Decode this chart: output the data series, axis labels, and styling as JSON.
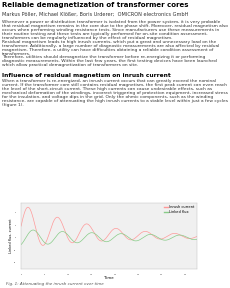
{
  "title": "Reliable demagnetization of transformer cores",
  "authors": "Markus Pöller, Michael Klößer, Boris Urderer;  OMICRON electronics GmbH",
  "abstract_lines": [
    "Whenever a power or distribution transformer is isolated from the power system, it is very probable",
    "that residual magnetism remains in the core due to the phase shift. Moreover, residual magnetism also",
    "occurs when performing winding resistance tests. Since manufacturers use these measurements in",
    "their routine testing and these tests are typically performed for on-site condition assessment,",
    "transformers can be regularly influenced by the effect of residual magnetism.",
    "Residual magnetism leads to high inrush currents, which put a great and unnecessary load on the",
    "transformer. Additionally, a large number of diagnostic measurements are also affected by residual",
    "magnetism. Therefore, a utility can have difficulties obtaining a reliable condition assessment of",
    "transformers.",
    "Therefore, utilities should demagnetize the transformer before re-energizing it or performing",
    "diagnostic measurements. Within the last few years, the first testing devices have been launched",
    "which allow practical demagnetization of transformers on site."
  ],
  "section_title": "Influence of residual magnetism on inrush current",
  "section_lines": [
    "When a transformer is re-energized, an inrush current occurs that can greatly exceed the nominal",
    "current. If the transformer core still contains residual magnetism, the first peak current can even reach",
    "the level of the short-circuit current. These high currents can cause undesirable effects, such as",
    "mechanical deformation of the windings, incorrect triggering of protection equipment, increased stress",
    "for the insulation, and voltage dips in the grid. Only the ohmic components, such as the winding",
    "resistance, are capable of attenuating the high inrush currents to a stable level within just a few cycles",
    "(figure 1)."
  ],
  "legend_inrush": "Inrush current",
  "legend_linked": "Linked flux",
  "xlabel": "Time",
  "ylabel": "Linked flux, current",
  "fig_caption": "Fig. 1: Attenuating the inrush current over time",
  "bg_color": "#ffffff",
  "plot_bg": "#f0f0f0",
  "inrush_color": "#ff9999",
  "linked_color": "#88cc88",
  "title_fontsize": 5.0,
  "authors_fontsize": 3.6,
  "body_fontsize": 3.2,
  "section_fontsize": 4.2,
  "caption_fontsize": 3.0
}
